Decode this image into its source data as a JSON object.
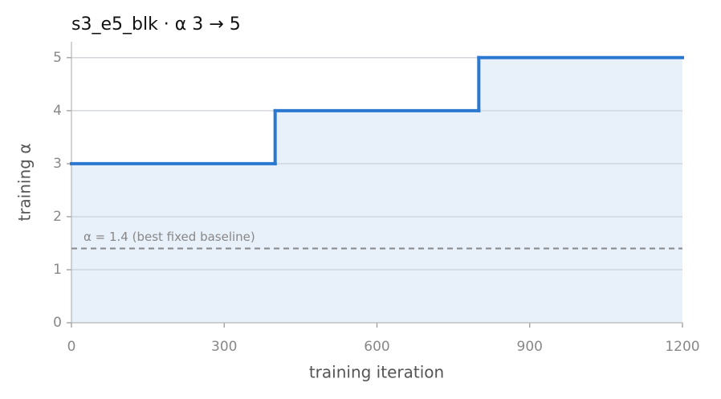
{
  "chart_data": {
    "type": "step",
    "title": "s3_e5_blk   ·   α 3 → 5",
    "x_label": "training iteration",
    "y_label": "training α",
    "x": [
      0,
      400,
      800
    ],
    "values": [
      3,
      4,
      5
    ],
    "color": "#2b78d0",
    "fill_color": "#e8f0fa",
    "xlim": [
      0,
      1200
    ],
    "ylim": [
      0,
      5.3
    ],
    "xticks": [
      0,
      300,
      600,
      900,
      1200
    ],
    "yticks": [
      0,
      1,
      2,
      3,
      4,
      5
    ],
    "grid": true,
    "baseline": {
      "value": 1.4,
      "label": "α = 1.4 (best fixed baseline)",
      "color": "#888888"
    }
  }
}
